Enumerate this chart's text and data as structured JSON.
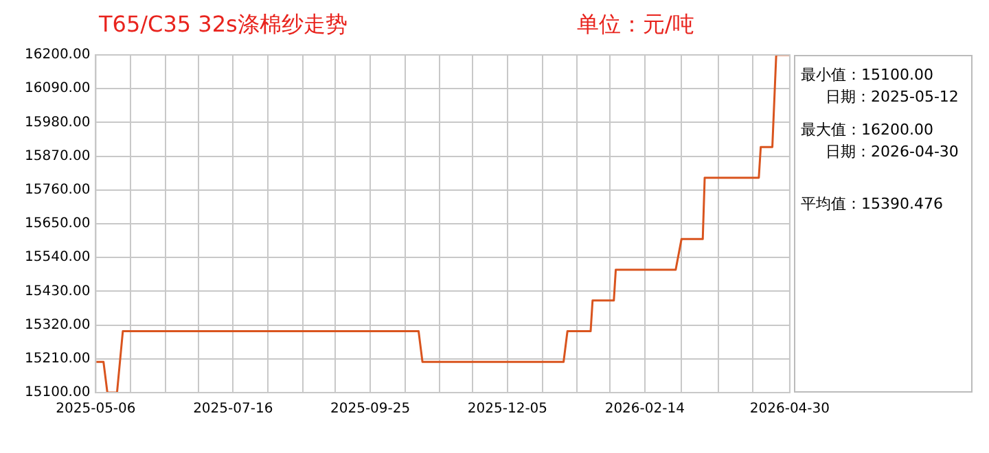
{
  "chart_data": {
    "type": "line",
    "title": "T65/C35 32s涤棉纱走势",
    "subtitle": "单位：元/吨",
    "series": [
      {
        "color": "#d9541e",
        "x": [
          "2025-05-06",
          "2025-05-10",
          "2025-05-12",
          "2025-05-17",
          "2025-05-20",
          "2025-10-20",
          "2025-10-22",
          "2026-01-03",
          "2026-01-05",
          "2026-01-17",
          "2026-01-18",
          "2026-01-29",
          "2026-01-30",
          "2026-03-02",
          "2026-03-05",
          "2026-03-16",
          "2026-03-17",
          "2026-04-14",
          "2026-04-15",
          "2026-04-21",
          "2026-04-23",
          "2026-04-30"
        ],
        "values": [
          15200,
          15200,
          15100,
          15100,
          15300,
          15300,
          15200,
          15200,
          15300,
          15300,
          15400,
          15400,
          15500,
          15500,
          15600,
          15600,
          15800,
          15800,
          15900,
          15900,
          16200,
          16200
        ]
      }
    ],
    "xlim": [
      "2025-05-06",
      "2026-04-30"
    ],
    "xticks": [
      "2025-05-06",
      {
        "value": "2025-05-24",
        "label": null
      },
      {
        "value": "2025-06-11",
        "label": null
      },
      {
        "value": "2025-06-28",
        "label": null
      },
      "2025-07-16",
      {
        "value": "2025-08-03",
        "label": null
      },
      {
        "value": "2025-08-21",
        "label": null
      },
      {
        "value": "2025-09-07",
        "label": null
      },
      "2025-09-25",
      {
        "value": "2025-10-13",
        "label": null
      },
      {
        "value": "2025-10-31",
        "label": null
      },
      {
        "value": "2025-11-17",
        "label": null
      },
      "2025-12-05",
      {
        "value": "2025-12-23",
        "label": null
      },
      {
        "value": "2026-01-10",
        "label": null
      },
      {
        "value": "2026-01-27",
        "label": null
      },
      "2026-02-14",
      {
        "value": "2026-03-05",
        "label": null
      },
      {
        "value": "2026-03-24",
        "label": null
      },
      {
        "value": "2026-04-11",
        "label": null
      },
      "2026-04-30"
    ],
    "ylim": [
      15100,
      16200
    ],
    "yticks": [
      {
        "value": 15100,
        "label": "15100.00"
      },
      {
        "value": 15210,
        "label": "15210.00"
      },
      {
        "value": 15320,
        "label": "15320.00"
      },
      {
        "value": 15430,
        "label": "15430.00"
      },
      {
        "value": 15540,
        "label": "15540.00"
      },
      {
        "value": 15650,
        "label": "15650.00"
      },
      {
        "value": 15760,
        "label": "15760.00"
      },
      {
        "value": 15870,
        "label": "15870.00"
      },
      {
        "value": 15980,
        "label": "15980.00"
      },
      {
        "value": 16090,
        "label": "16090.00"
      },
      {
        "value": 16200,
        "label": "16200.00"
      }
    ],
    "grid": true,
    "legend": false,
    "marker": "none",
    "line_style": "solid",
    "annotations": [
      "最小值：15100.00",
      "日期：2025-05-12",
      "最大值：16200.00",
      "日期：2026-04-30",
      "平均值：15390.476"
    ]
  }
}
